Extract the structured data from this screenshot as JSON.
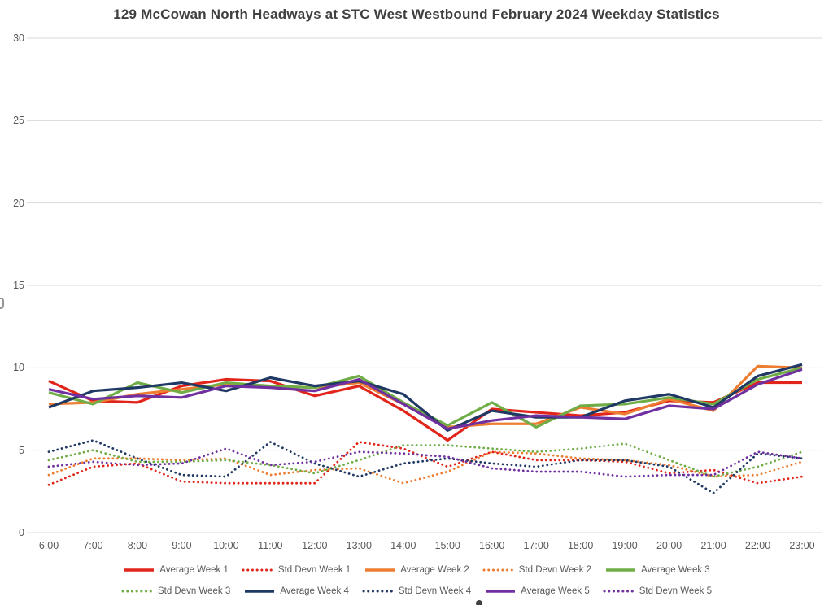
{
  "chart_data": {
    "type": "line",
    "title": "129 McCowan North Headways at STC West Westbound February 2024 Weekday Statistics",
    "xlabel": "",
    "ylabel": "",
    "x": [
      "6:00",
      "7:00",
      "8:00",
      "9:00",
      "10:00",
      "11:00",
      "12:00",
      "13:00",
      "14:00",
      "15:00",
      "16:00",
      "17:00",
      "18:00",
      "19:00",
      "20:00",
      "21:00",
      "22:00",
      "23:00"
    ],
    "ylim": [
      0,
      30
    ],
    "yticks": [
      0,
      5,
      10,
      15,
      20,
      25,
      30
    ],
    "grid": "horizontal",
    "gridline_color": "#D9D9D9",
    "legend_position": "bottom",
    "series": [
      {
        "name": "Average Week 1",
        "style": "solid",
        "color": "#E1251B",
        "values": [
          9.2,
          8.0,
          7.9,
          8.9,
          9.3,
          9.2,
          8.3,
          8.9,
          7.4,
          5.6,
          7.5,
          7.3,
          7.1,
          7.3,
          8.0,
          7.9,
          9.1,
          9.1
        ]
      },
      {
        "name": "Std Devn Week 1",
        "style": "dotted",
        "color": "#E1251B",
        "values": [
          2.9,
          4.0,
          4.2,
          3.1,
          3.0,
          3.0,
          3.0,
          5.5,
          5.1,
          4.0,
          4.9,
          4.4,
          4.4,
          4.3,
          3.6,
          3.8,
          3.0,
          3.4
        ]
      },
      {
        "name": "Average Week 2",
        "style": "solid",
        "color": "#ED7D31",
        "values": [
          7.8,
          7.9,
          8.4,
          8.7,
          9.0,
          8.9,
          8.8,
          9.1,
          7.8,
          6.4,
          6.6,
          6.6,
          7.6,
          7.2,
          8.1,
          7.4,
          10.1,
          10.0
        ]
      },
      {
        "name": "Std Devn Week 2",
        "style": "dotted",
        "color": "#ED7D31",
        "values": [
          3.5,
          4.5,
          4.5,
          4.4,
          4.5,
          3.5,
          3.8,
          3.9,
          3.0,
          3.7,
          4.9,
          4.8,
          4.5,
          4.4,
          4.1,
          3.4,
          3.5,
          4.3
        ]
      },
      {
        "name": "Average Week 3",
        "style": "solid",
        "color": "#70AD47",
        "values": [
          8.5,
          7.8,
          9.1,
          8.5,
          9.1,
          8.9,
          8.8,
          9.5,
          7.9,
          6.5,
          7.9,
          6.4,
          7.7,
          7.8,
          8.2,
          7.8,
          9.3,
          10.0
        ]
      },
      {
        "name": "Std Devn Week 3",
        "style": "dotted",
        "color": "#70AD47",
        "values": [
          4.4,
          5.0,
          4.3,
          4.3,
          4.4,
          4.1,
          3.6,
          4.4,
          5.3,
          5.3,
          5.1,
          4.9,
          5.1,
          5.4,
          4.4,
          3.4,
          4.0,
          4.9
        ]
      },
      {
        "name": "Average Week 4",
        "style": "solid",
        "color": "#1F3864",
        "values": [
          7.6,
          8.6,
          8.8,
          9.1,
          8.6,
          9.4,
          8.9,
          9.2,
          8.4,
          6.2,
          7.4,
          7.0,
          7.0,
          8.0,
          8.4,
          7.6,
          9.5,
          10.2
        ]
      },
      {
        "name": "Std Devn Week 4",
        "style": "dotted",
        "color": "#1F3864",
        "values": [
          4.9,
          5.6,
          4.5,
          3.5,
          3.4,
          5.5,
          4.2,
          3.4,
          4.2,
          4.5,
          4.2,
          4.0,
          4.4,
          4.4,
          4.0,
          2.4,
          4.8,
          4.5
        ]
      },
      {
        "name": "Average Week 5",
        "style": "solid",
        "color": "#7030A0",
        "values": [
          8.7,
          8.1,
          8.3,
          8.2,
          8.9,
          8.8,
          8.6,
          9.3,
          7.8,
          6.3,
          6.8,
          7.1,
          7.0,
          6.9,
          7.7,
          7.5,
          9.0,
          9.9
        ]
      },
      {
        "name": "Std Devn Week 5",
        "style": "dotted",
        "color": "#7030A0",
        "values": [
          4.0,
          4.3,
          4.1,
          4.2,
          5.1,
          4.1,
          4.3,
          4.9,
          4.8,
          4.6,
          3.9,
          3.7,
          3.7,
          3.4,
          3.5,
          3.5,
          4.9,
          4.5
        ]
      }
    ],
    "legend_rows": [
      [
        0,
        1,
        2,
        3,
        4
      ],
      [
        5,
        6,
        7,
        8,
        9
      ]
    ]
  }
}
